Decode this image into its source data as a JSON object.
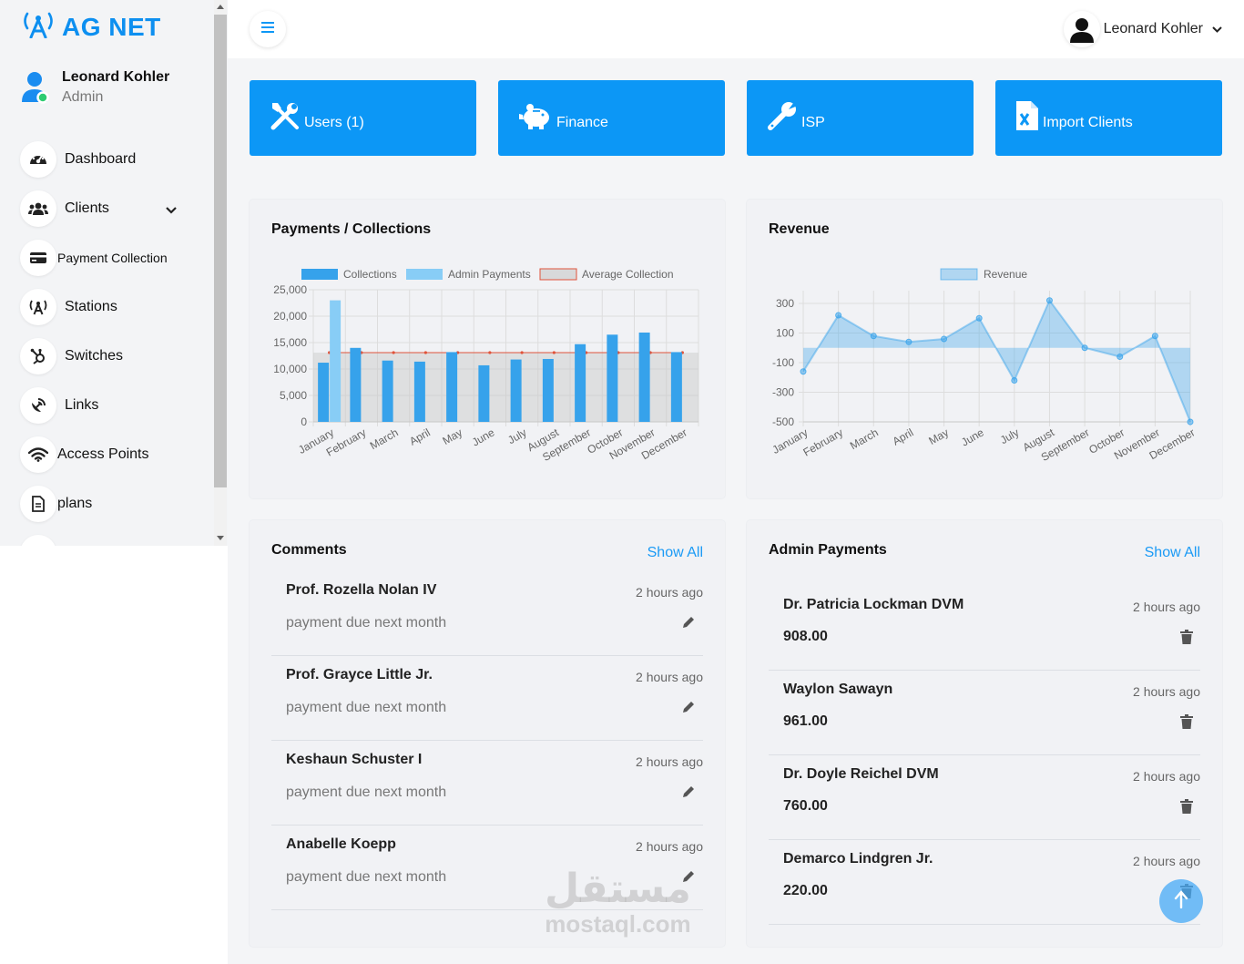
{
  "app": {
    "brand": "AG NET"
  },
  "sidebar": {
    "user": {
      "name": "Leonard Kohler",
      "role": "Admin"
    },
    "items": [
      {
        "label": "Dashboard",
        "icon": "dashboard-gauge-icon"
      },
      {
        "label": "Clients",
        "icon": "users-group-icon"
      },
      {
        "label": "Payment Collection",
        "icon": "credit-card-icon"
      },
      {
        "label": "Stations",
        "icon": "broadcast-tower-icon"
      },
      {
        "label": "Switches",
        "icon": "hubspot-icon"
      },
      {
        "label": "Links",
        "icon": "satellite-dish-icon"
      },
      {
        "label": "Access Points",
        "icon": "wifi-icon"
      },
      {
        "label": "plans",
        "icon": "document-icon"
      }
    ]
  },
  "topbar": {
    "user_name": "Leonard Kohler"
  },
  "tiles": [
    {
      "label": "Users (1)",
      "icon": "tools-icon"
    },
    {
      "label": "Finance",
      "icon": "piggy-bank-icon"
    },
    {
      "label": "ISP",
      "icon": "wrench-icon"
    },
    {
      "label": "Import Clients",
      "icon": "excel-file-icon"
    }
  ],
  "colors": {
    "primary": "#0c97f6",
    "accent_link": "#1a9af5",
    "bar": "#36a2eb",
    "admin_bar": "#88cdf6",
    "avg_line": "#e0533a"
  },
  "chart_data": [
    {
      "type": "bar",
      "title": "Payments / Collections",
      "categories": [
        "January",
        "February",
        "March",
        "April",
        "May",
        "June",
        "July",
        "August",
        "September",
        "October",
        "November",
        "December"
      ],
      "series": [
        {
          "name": "Collections",
          "values": [
            11200,
            14000,
            11600,
            11400,
            13200,
            10700,
            11800,
            11900,
            14700,
            16500,
            16900,
            13200
          ]
        },
        {
          "name": "Admin Payments",
          "values": [
            23000,
            null,
            null,
            null,
            null,
            null,
            null,
            null,
            null,
            null,
            null,
            null
          ]
        },
        {
          "name": "Average Collection",
          "type": "line",
          "values": [
            13100,
            13100,
            13100,
            13100,
            13100,
            13100,
            13100,
            13100,
            13100,
            13100,
            13100,
            13100
          ]
        }
      ],
      "ylim": [
        0,
        25000
      ],
      "yticks": [
        "25,000",
        "20,000",
        "15,000",
        "10,000",
        "5,000",
        "0"
      ],
      "grid": true,
      "legend": "top"
    },
    {
      "type": "area",
      "title": "Revenue",
      "categories": [
        "January",
        "February",
        "March",
        "April",
        "May",
        "June",
        "July",
        "August",
        "September",
        "October",
        "November",
        "December"
      ],
      "series": [
        {
          "name": "Revenue",
          "values": [
            -160,
            220,
            80,
            40,
            60,
            200,
            -220,
            320,
            0,
            -60,
            80,
            -500
          ]
        }
      ],
      "ylim": [
        -500,
        300
      ],
      "yticks": [
        "300",
        "100",
        "-100",
        "-300",
        "-500"
      ],
      "grid": true,
      "legend": "top"
    }
  ],
  "comments": {
    "title": "Comments",
    "show_all": "Show All",
    "items": [
      {
        "name": "Prof. Rozella Nolan IV",
        "time": "2 hours ago",
        "text": "payment due next month"
      },
      {
        "name": "Prof. Grayce Little Jr.",
        "time": "2 hours ago",
        "text": "payment due next month"
      },
      {
        "name": "Keshaun Schuster I",
        "time": "2 hours ago",
        "text": "payment due next month"
      },
      {
        "name": "Anabelle Koepp",
        "time": "2 hours ago",
        "text": "payment due next month"
      }
    ]
  },
  "admin_payments": {
    "title": "Admin Payments",
    "show_all": "Show All",
    "items": [
      {
        "name": "Dr. Patricia Lockman DVM",
        "time": "2 hours ago",
        "amount": "908.00"
      },
      {
        "name": "Waylon Sawayn",
        "time": "2 hours ago",
        "amount": "961.00"
      },
      {
        "name": "Dr. Doyle Reichel DVM",
        "time": "2 hours ago",
        "amount": "760.00"
      },
      {
        "name": "Demarco Lindgren Jr.",
        "time": "2 hours ago",
        "amount": "220.00"
      }
    ]
  },
  "watermark": {
    "arabic": "مستقل",
    "latin": "mostaql.com"
  }
}
